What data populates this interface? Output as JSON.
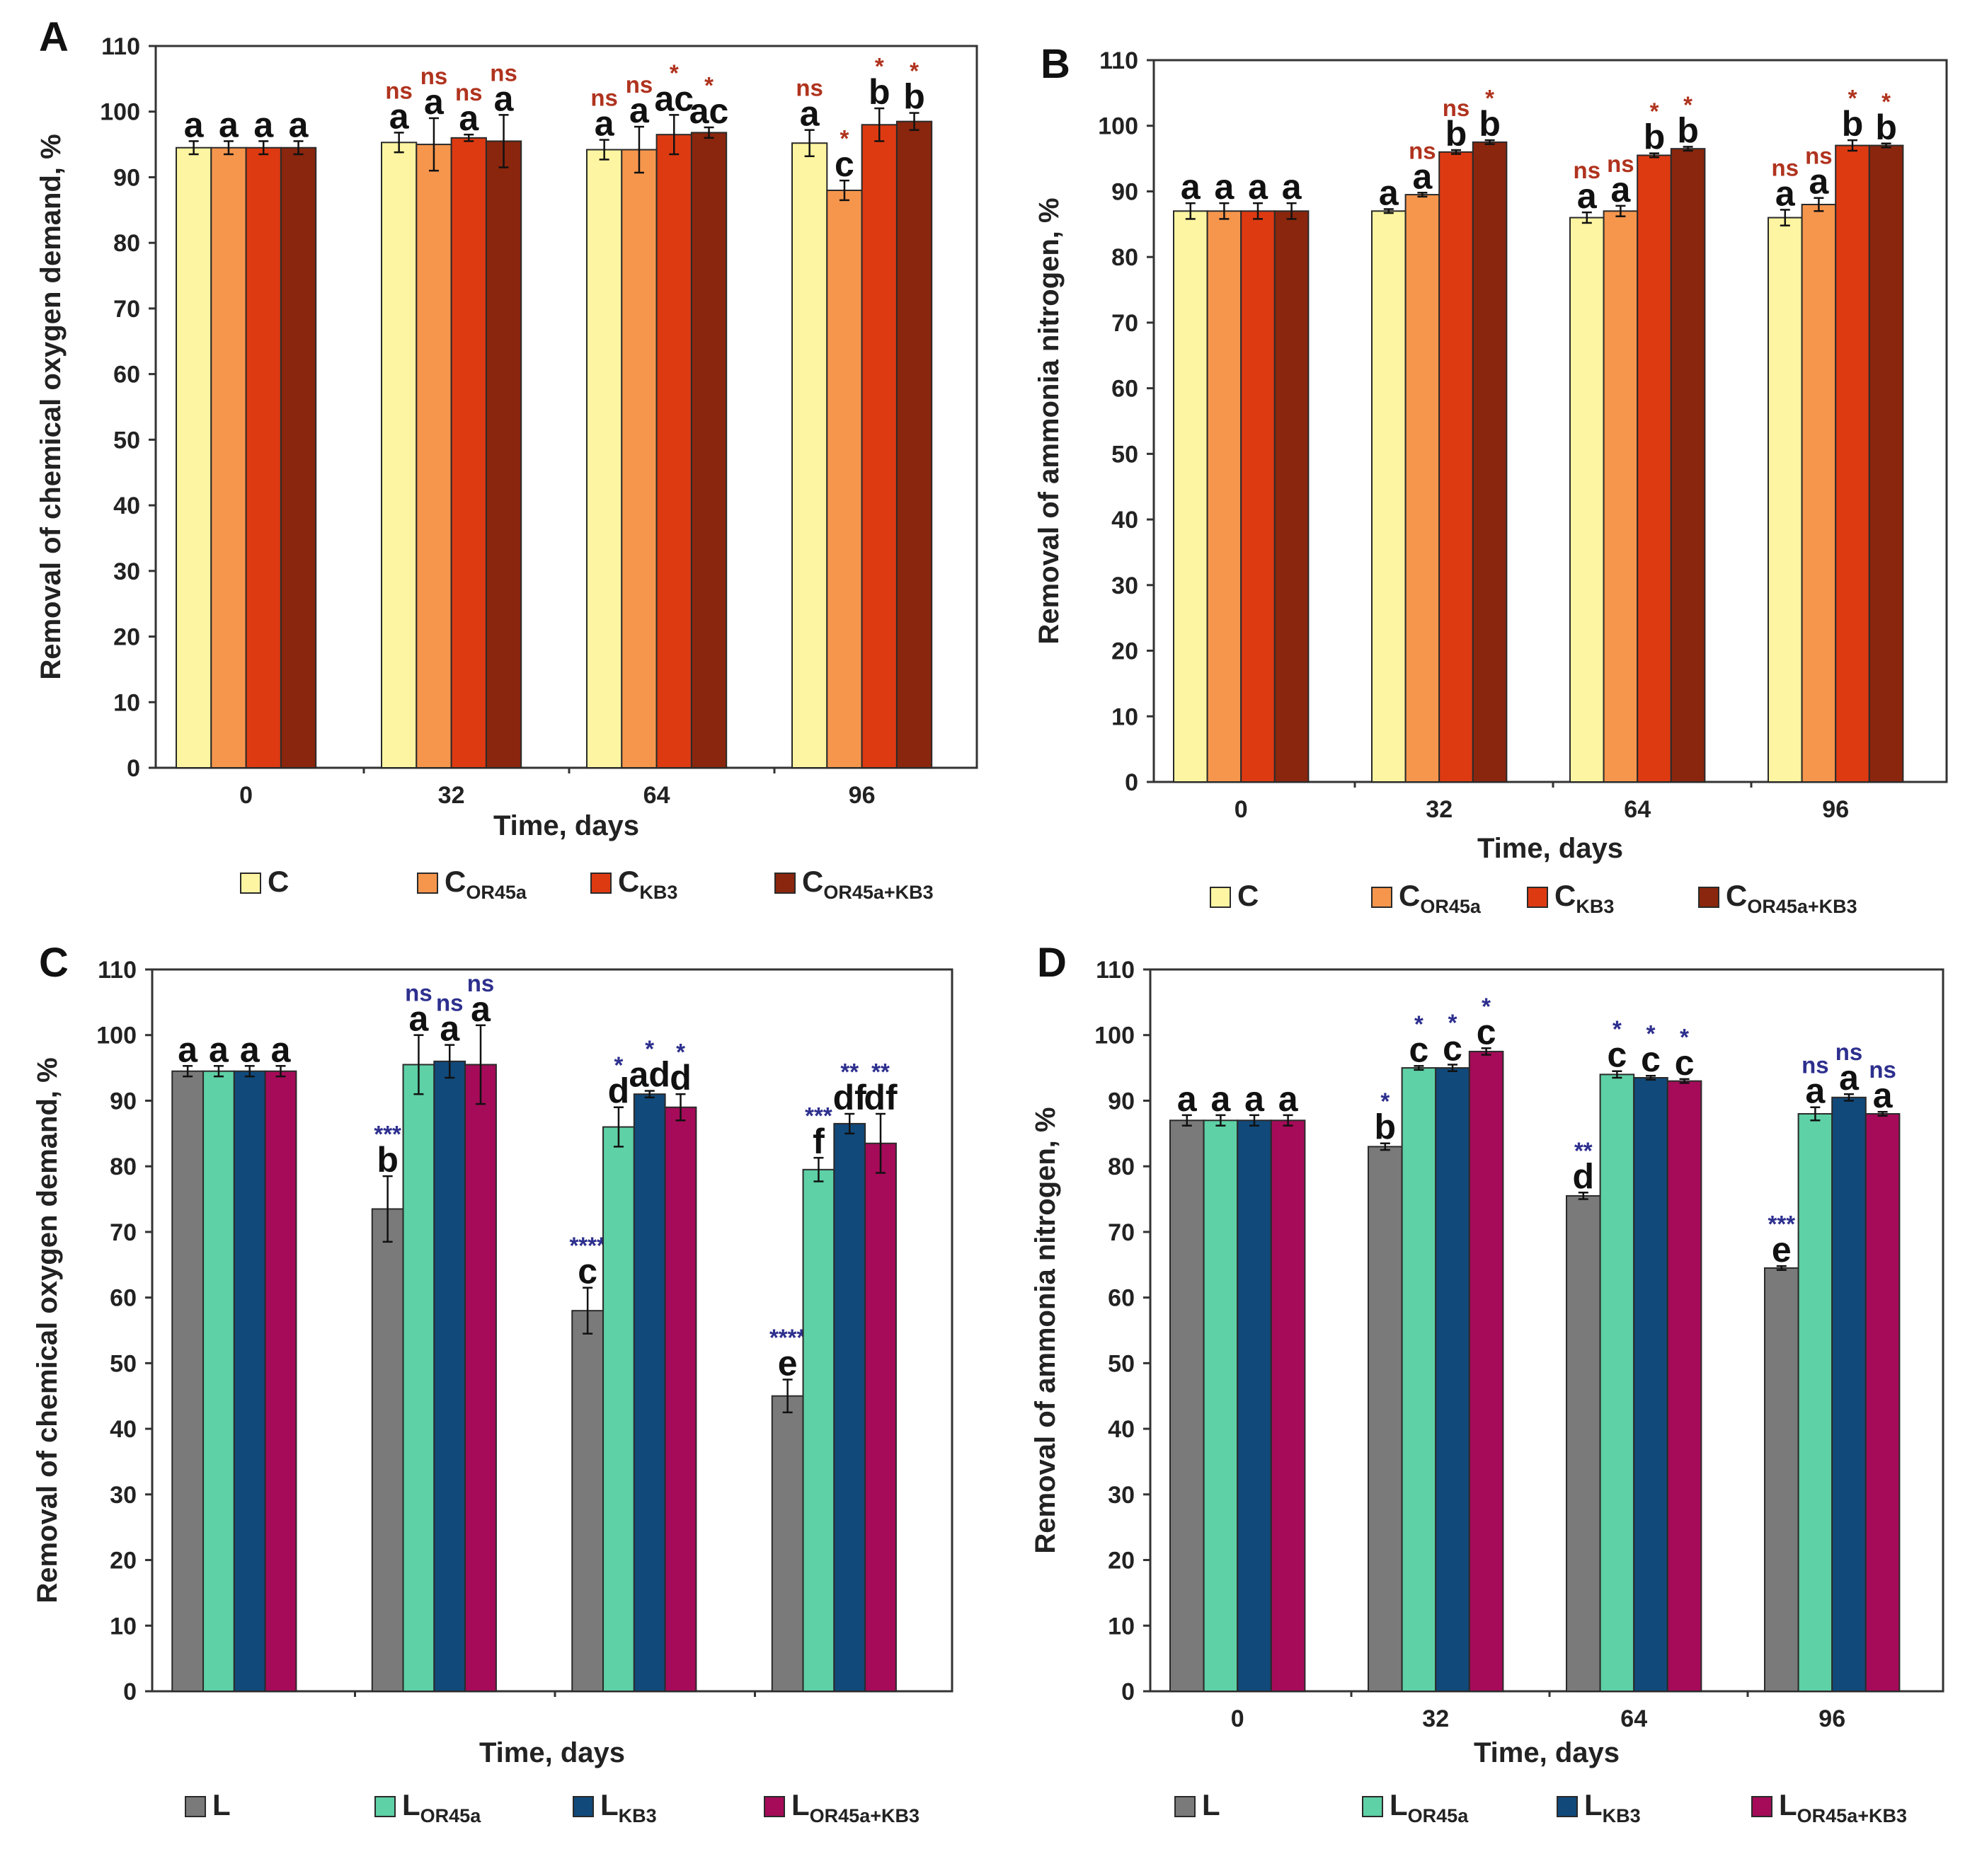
{
  "chart_data": [
    {
      "panel": "A",
      "type": "bar",
      "title": "",
      "xlabel": "Time, days",
      "ylabel": "Removal of chemical oxygen demand, %",
      "ylim": [
        0,
        110
      ],
      "yticks": [
        0,
        10,
        20,
        30,
        40,
        50,
        60,
        70,
        80,
        90,
        100,
        110
      ],
      "categories": [
        "0",
        "32",
        "64",
        "96"
      ],
      "show_xtick_labels": true,
      "sig_color": "#b0331e",
      "series": [
        {
          "name": "C",
          "base": "C",
          "sub": "",
          "color": "#fdf5a2",
          "values": [
            94.5,
            95.3,
            94.2,
            95.2
          ],
          "errors": [
            1.0,
            1.5,
            1.5,
            2.0
          ],
          "letters": [
            "a",
            "a",
            "a",
            "a"
          ],
          "sig": [
            "",
            "ns",
            "ns",
            "ns"
          ]
        },
        {
          "name": "COR45a",
          "base": "C",
          "sub": "OR45a",
          "color": "#f6964d",
          "values": [
            94.5,
            95.0,
            94.2,
            88.0
          ],
          "errors": [
            1.0,
            4.0,
            3.5,
            1.5
          ],
          "letters": [
            "a",
            "a",
            "a",
            "c"
          ],
          "sig": [
            "",
            "ns",
            "ns",
            "*"
          ]
        },
        {
          "name": "CKB3",
          "base": "C",
          "sub": "KB3",
          "color": "#de3a12",
          "values": [
            94.5,
            96.0,
            96.5,
            98.0
          ],
          "errors": [
            1.0,
            0.5,
            3.0,
            2.5
          ],
          "letters": [
            "a",
            "a",
            "ac",
            "b"
          ],
          "sig": [
            "",
            "ns",
            "*",
            "*"
          ]
        },
        {
          "name": "COR45a+KB3",
          "base": "C",
          "sub": "OR45a+KB3",
          "color": "#8a260d",
          "values": [
            94.5,
            95.5,
            96.8,
            98.5
          ],
          "errors": [
            1.0,
            4.0,
            0.8,
            1.3
          ],
          "letters": [
            "a",
            "a",
            "ac",
            "b"
          ],
          "sig": [
            "",
            "ns",
            "*",
            "*"
          ]
        }
      ]
    },
    {
      "panel": "B",
      "type": "bar",
      "title": "",
      "xlabel": "Time, days",
      "ylabel": "Removal of ammonia nitrogen, %",
      "ylim": [
        0,
        110
      ],
      "yticks": [
        0,
        10,
        20,
        30,
        40,
        50,
        60,
        70,
        80,
        90,
        100,
        110
      ],
      "categories": [
        "0",
        "32",
        "64",
        "96"
      ],
      "show_xtick_labels": true,
      "sig_color": "#b0331e",
      "series": [
        {
          "name": "C",
          "base": "C",
          "sub": "",
          "color": "#fdf5a2",
          "values": [
            87.0,
            87.0,
            86.0,
            86.0
          ],
          "errors": [
            1.2,
            0.3,
            0.8,
            1.2
          ],
          "letters": [
            "a",
            "a",
            "a",
            "a"
          ],
          "sig": [
            "",
            "",
            "ns",
            "ns"
          ]
        },
        {
          "name": "COR45a",
          "base": "C",
          "sub": "OR45a",
          "color": "#f6964d",
          "values": [
            87.0,
            89.5,
            87.0,
            88.0
          ],
          "errors": [
            1.2,
            0.3,
            0.8,
            1.0
          ],
          "letters": [
            "a",
            "a",
            "a",
            "a"
          ],
          "sig": [
            "",
            "ns",
            "ns",
            "ns"
          ]
        },
        {
          "name": "CKB3",
          "base": "C",
          "sub": "KB3",
          "color": "#de3a12",
          "values": [
            87.0,
            96.0,
            95.5,
            97.0
          ],
          "errors": [
            1.2,
            0.3,
            0.3,
            0.8
          ],
          "letters": [
            "a",
            "b",
            "b",
            "b"
          ],
          "sig": [
            "",
            "ns",
            "*",
            "*"
          ]
        },
        {
          "name": "COR45a+KB3",
          "base": "C",
          "sub": "OR45a+KB3",
          "color": "#8a260d",
          "values": [
            87.0,
            97.5,
            96.5,
            97.0
          ],
          "errors": [
            1.2,
            0.3,
            0.3,
            0.3
          ],
          "letters": [
            "a",
            "b",
            "b",
            "b"
          ],
          "sig": [
            "",
            "*",
            "*",
            "*"
          ]
        }
      ]
    },
    {
      "panel": "C",
      "type": "bar",
      "title": "",
      "xlabel": "Time, days",
      "ylabel": "Removal of chemical oxygen demand, %",
      "ylim": [
        0,
        110
      ],
      "yticks": [
        0,
        10,
        20,
        30,
        40,
        50,
        60,
        70,
        80,
        90,
        100,
        110
      ],
      "categories": [
        "0",
        "32",
        "64",
        "96"
      ],
      "show_xtick_labels": false,
      "sig_color": "#2d2f8e",
      "series": [
        {
          "name": "L",
          "base": "L",
          "sub": "",
          "color": "#7a7a7a",
          "values": [
            94.5,
            73.5,
            58.0,
            45.0
          ],
          "errors": [
            0.8,
            5.0,
            3.5,
            2.5
          ],
          "letters": [
            "a",
            "b",
            "c",
            "e"
          ],
          "sig": [
            "",
            "***",
            "****",
            "****"
          ]
        },
        {
          "name": "LOR45a",
          "base": "L",
          "sub": "OR45a",
          "color": "#5ed1a6",
          "values": [
            94.5,
            95.5,
            86.0,
            79.5
          ],
          "errors": [
            0.8,
            4.5,
            3.0,
            1.8
          ],
          "letters": [
            "a",
            "a",
            "d",
            "f"
          ],
          "sig": [
            "",
            "ns",
            "*",
            "***"
          ]
        },
        {
          "name": "LKB3",
          "base": "L",
          "sub": "KB3",
          "color": "#11497a",
          "values": [
            94.5,
            96.0,
            91.0,
            86.5
          ],
          "errors": [
            0.8,
            2.5,
            0.5,
            1.5
          ],
          "letters": [
            "a",
            "a",
            "ad",
            "df"
          ],
          "sig": [
            "",
            "ns",
            "*",
            "**"
          ]
        },
        {
          "name": "LOR45a+KB3",
          "base": "L",
          "sub": "OR45a+KB3",
          "color": "#a50b59",
          "values": [
            94.5,
            95.5,
            89.0,
            83.5
          ],
          "errors": [
            0.8,
            6.0,
            2.0,
            4.5
          ],
          "letters": [
            "a",
            "a",
            "d",
            "df"
          ],
          "sig": [
            "",
            "ns",
            "*",
            "**"
          ]
        }
      ]
    },
    {
      "panel": "D",
      "type": "bar",
      "title": "",
      "xlabel": "Time, days",
      "ylabel": "Removal of ammonia nitrogen, %",
      "ylim": [
        0,
        110
      ],
      "yticks": [
        0,
        10,
        20,
        30,
        40,
        50,
        60,
        70,
        80,
        90,
        100,
        110
      ],
      "categories": [
        "0",
        "32",
        "64",
        "96"
      ],
      "show_xtick_labels": true,
      "sig_color": "#2d2f8e",
      "series": [
        {
          "name": "L",
          "base": "L",
          "sub": "",
          "color": "#7a7a7a",
          "values": [
            87.0,
            83.0,
            75.5,
            64.5
          ],
          "errors": [
            0.8,
            0.5,
            0.5,
            0.3
          ],
          "letters": [
            "a",
            "b",
            "d",
            "e"
          ],
          "sig": [
            "",
            "*",
            "**",
            "***"
          ]
        },
        {
          "name": "LOR45a",
          "base": "L",
          "sub": "OR45a",
          "color": "#5ed1a6",
          "values": [
            87.0,
            95.0,
            94.0,
            88.0
          ],
          "errors": [
            0.8,
            0.3,
            0.5,
            1.0
          ],
          "letters": [
            "a",
            "c",
            "c",
            "a"
          ],
          "sig": [
            "",
            "*",
            "*",
            "ns"
          ]
        },
        {
          "name": "LKB3",
          "base": "L",
          "sub": "KB3",
          "color": "#11497a",
          "values": [
            87.0,
            95.0,
            93.5,
            90.5
          ],
          "errors": [
            0.8,
            0.5,
            0.3,
            0.5
          ],
          "letters": [
            "a",
            "c",
            "c",
            "a"
          ],
          "sig": [
            "",
            "*",
            "*",
            "ns"
          ]
        },
        {
          "name": "LOR45a+KB3",
          "base": "L",
          "sub": "OR45a+KB3",
          "color": "#a50b59",
          "values": [
            87.0,
            97.5,
            93.0,
            88.0
          ],
          "errors": [
            0.8,
            0.5,
            0.3,
            0.3
          ],
          "letters": [
            "a",
            "c",
            "c",
            "a"
          ],
          "sig": [
            "",
            "*",
            "*",
            "ns"
          ]
        }
      ]
    }
  ]
}
